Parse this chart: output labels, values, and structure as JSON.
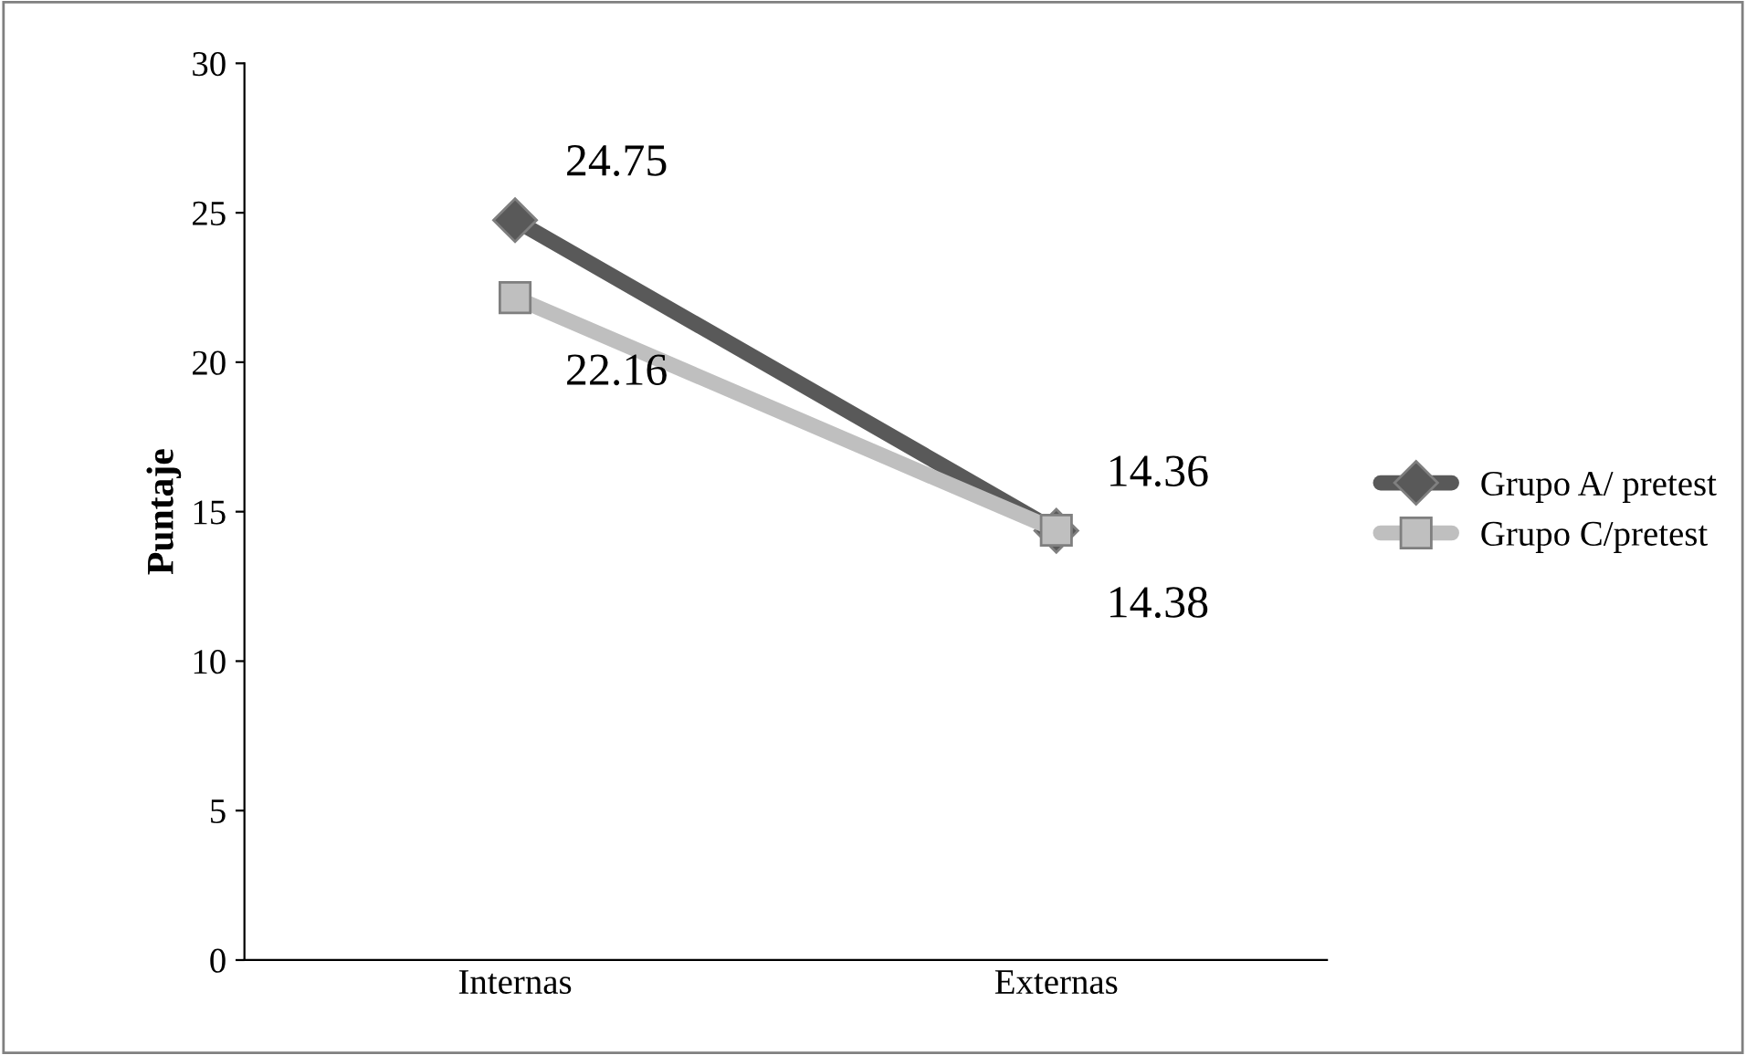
{
  "chart_data": {
    "type": "line",
    "ylabel": "Puntaje",
    "categories": [
      "Internas",
      "Externas"
    ],
    "series": [
      {
        "name": "Grupo A/ pretest",
        "color": "#595959",
        "marker": "diamond",
        "values": [
          24.75,
          14.36
        ]
      },
      {
        "name": "Grupo C/pretest",
        "color": "#bfbfbf",
        "marker": "square",
        "values": [
          22.16,
          14.38
        ]
      }
    ],
    "ylim": [
      0,
      30
    ],
    "yticks": [
      0,
      5,
      10,
      15,
      20,
      25,
      30
    ],
    "data_labels": true,
    "legend": "right",
    "grid": false
  }
}
